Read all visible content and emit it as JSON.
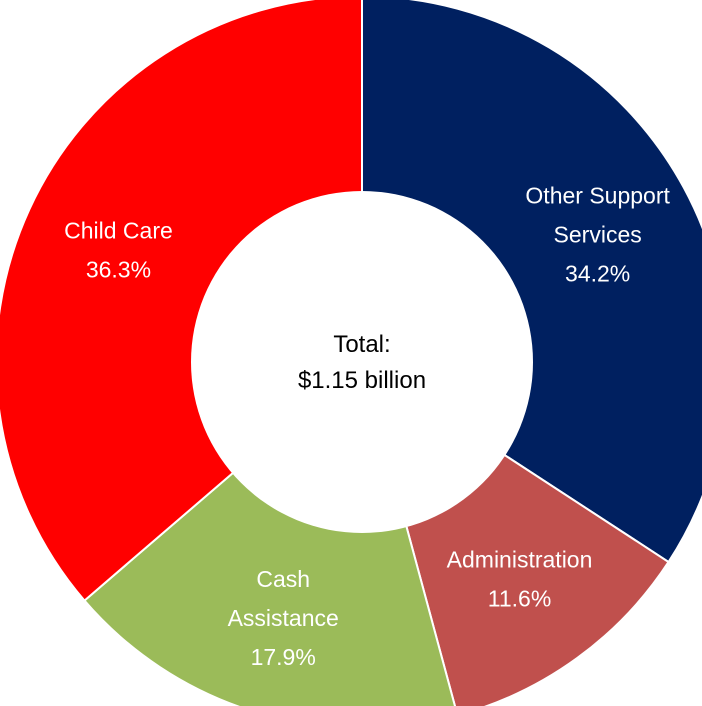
{
  "chart_data": {
    "type": "pie",
    "variant": "donut",
    "center_text": [
      "Total:",
      "$1.15 billion"
    ],
    "slices": [
      {
        "name": "Other Support Services",
        "label_lines": [
          "Other Support",
          "Services"
        ],
        "value_label": "34.2%",
        "value": 34.2,
        "color": "#002060"
      },
      {
        "name": "Administration",
        "label_lines": [
          "Administration"
        ],
        "value_label": "11.6%",
        "value": 11.6,
        "color": "#C0504D"
      },
      {
        "name": "Cash Assistance",
        "label_lines": [
          "Cash",
          "Assistance"
        ],
        "value_label": "17.9%",
        "value": 17.9,
        "color": "#9BBB59"
      },
      {
        "name": "Child Care",
        "label_lines": [
          "Child Care"
        ],
        "value_label": "36.3%",
        "value": 36.3,
        "color": "#FF0000"
      }
    ]
  }
}
